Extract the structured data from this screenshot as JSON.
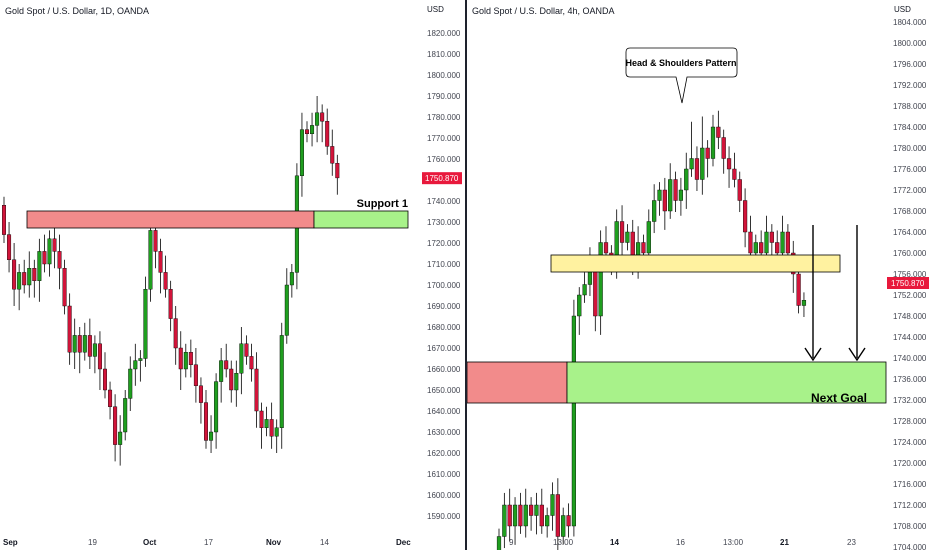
{
  "left_chart": {
    "title": "Gold Spot / U.S. Dollar, 1D, OANDA",
    "currency": "USD",
    "y_ticks": [
      1820,
      1810,
      1800,
      1790,
      1780,
      1770,
      1760,
      1740,
      1730,
      1720,
      1710,
      1700,
      1690,
      1680,
      1670,
      1660,
      1650,
      1640,
      1630,
      1620,
      1610,
      1600,
      1590
    ],
    "x_ticks": [
      {
        "label": "Sep",
        "bold": true
      },
      {
        "label": "19",
        "bold": false
      },
      {
        "label": "Oct",
        "bold": true
      },
      {
        "label": "17",
        "bold": false
      },
      {
        "label": "Nov",
        "bold": true
      },
      {
        "label": "14",
        "bold": false
      },
      {
        "label": "Dec",
        "bold": true
      }
    ],
    "last_price": "1750.870",
    "zone_label": "Support 1"
  },
  "right_chart": {
    "title": "Gold Spot / U.S. Dollar, 4h, OANDA",
    "currency": "USD",
    "y_ticks": [
      1804,
      1800,
      1796,
      1792,
      1788,
      1784,
      1780,
      1776,
      1772,
      1768,
      1764,
      1760,
      1756,
      1752,
      1748,
      1744,
      1740,
      1736,
      1732,
      1728,
      1724,
      1720,
      1716,
      1712,
      1708,
      1704
    ],
    "x_ticks": [
      {
        "label": "9",
        "bold": false
      },
      {
        "label": "13:00",
        "bold": false
      },
      {
        "label": "14",
        "bold": true
      },
      {
        "label": "16",
        "bold": false
      },
      {
        "label": "13:00",
        "bold": false
      },
      {
        "label": "21",
        "bold": true
      },
      {
        "label": "23",
        "bold": false
      }
    ],
    "last_price": "1750.870",
    "pattern_label": "Head & Shoulders Pattern",
    "zone_label": "Next Goal"
  },
  "colors": {
    "bull": "#1f9e1f",
    "bear": "#d2143a",
    "price_tag": "#e8193c",
    "resistance_zone": "#f28b8b",
    "support_zone": "#a8f28a",
    "neckline_zone": "#fff2a0"
  }
}
